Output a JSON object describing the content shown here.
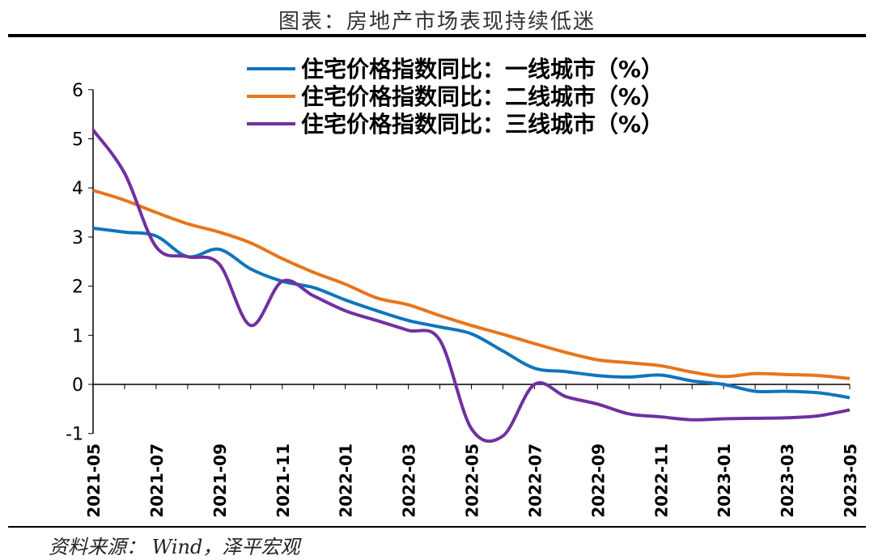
{
  "title": "图表：房地产市场表现持续低迷",
  "source": "资料来源： Wind，泽平宏观",
  "chart_data": {
    "type": "line",
    "title": "图表：房地产市场表现持续低迷",
    "xlabel": "",
    "ylabel": "",
    "ylim": [
      -1,
      6
    ],
    "yticks": [
      -1,
      0,
      1,
      2,
      3,
      4,
      5,
      6
    ],
    "x": [
      "2021-05",
      "2021-06",
      "2021-07",
      "2021-08",
      "2021-09",
      "2021-10",
      "2021-11",
      "2021-12",
      "2022-01",
      "2022-02",
      "2022-03",
      "2022-04",
      "2022-05",
      "2022-06",
      "2022-07",
      "2022-08",
      "2022-09",
      "2022-10",
      "2022-11",
      "2022-12",
      "2023-01",
      "2023-02",
      "2023-03",
      "2023-04",
      "2023-05"
    ],
    "xticks": [
      "2021-05",
      "2021-07",
      "2021-09",
      "2021-11",
      "2022-01",
      "2022-03",
      "2022-05",
      "2022-07",
      "2022-09",
      "2022-11",
      "2023-01",
      "2023-03",
      "2023-05"
    ],
    "legend_position": "top-center",
    "series": [
      {
        "name": "住宅价格指数同比：一线城市（%）",
        "color": "#0f75bc",
        "values": [
          3.18,
          3.1,
          3.02,
          2.6,
          2.75,
          2.35,
          2.1,
          1.97,
          1.72,
          1.5,
          1.3,
          1.17,
          1.03,
          0.68,
          0.33,
          0.26,
          0.18,
          0.15,
          0.19,
          0.07,
          0.0,
          -0.14,
          -0.14,
          -0.17,
          -0.27
        ]
      },
      {
        "name": "住宅价格指数同比：二线城市（%）",
        "color": "#e8751a",
        "values": [
          3.95,
          3.75,
          3.5,
          3.27,
          3.1,
          2.88,
          2.56,
          2.28,
          2.04,
          1.76,
          1.62,
          1.4,
          1.2,
          1.02,
          0.83,
          0.65,
          0.5,
          0.44,
          0.38,
          0.25,
          0.16,
          0.22,
          0.2,
          0.18,
          0.12
        ]
      },
      {
        "name": "住宅价格指数同比：三线城市（%）",
        "color": "#7030a0",
        "values": [
          5.18,
          4.3,
          2.8,
          2.6,
          2.45,
          1.2,
          2.1,
          1.8,
          1.5,
          1.3,
          1.1,
          0.9,
          -0.9,
          -1.05,
          0.0,
          -0.25,
          -0.4,
          -0.6,
          -0.66,
          -0.72,
          -0.7,
          -0.69,
          -0.68,
          -0.64,
          -0.52
        ]
      }
    ]
  }
}
